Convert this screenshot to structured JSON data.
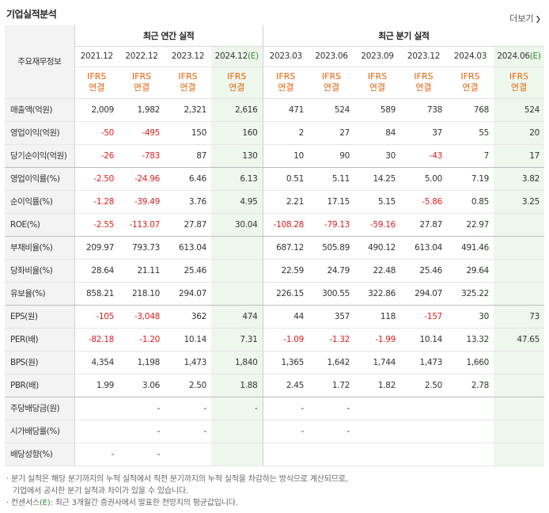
{
  "section_title": "기업실적분석",
  "more_label": "더보기",
  "headers": {
    "row_label_header": "주요재무정보",
    "annual_group": "최근 연간 실적",
    "quarterly_group": "최근 분기 실적",
    "annual_periods": [
      "2021.12",
      "2022.12",
      "2023.12",
      "2024.12"
    ],
    "annual_est_suffix": "(E)",
    "quarter_periods": [
      "2023.03",
      "2023.06",
      "2023.09",
      "2023.12",
      "2024.03",
      "2024.06"
    ],
    "quarter_est_suffix": "(E)",
    "ifrs_line1": "IFRS",
    "ifrs_line2": "연결"
  },
  "rows": [
    {
      "label": "매출액(억원)",
      "values": [
        "2,009",
        "1,982",
        "2,321",
        "2,616",
        "471",
        "524",
        "589",
        "738",
        "768",
        "524"
      ]
    },
    {
      "label": "영업이익(억원)",
      "values": [
        "-50",
        "-495",
        "150",
        "160",
        "2",
        "27",
        "84",
        "37",
        "55",
        "20"
      ]
    },
    {
      "label": "당기순이익(억원)",
      "values": [
        "-26",
        "-783",
        "87",
        "130",
        "10",
        "90",
        "30",
        "-43",
        "7",
        "17"
      ]
    },
    {
      "label": "영업이익률(%)",
      "values": [
        "-2.50",
        "-24.96",
        "6.46",
        "6.13",
        "0.51",
        "5.11",
        "14.25",
        "5.00",
        "7.19",
        "3.82"
      ]
    },
    {
      "label": "순이익률(%)",
      "values": [
        "-1.28",
        "-39.49",
        "3.76",
        "4.95",
        "2.21",
        "17.15",
        "5.15",
        "-5.86",
        "0.85",
        "3.25"
      ]
    },
    {
      "label": "ROE(%)",
      "values": [
        "-2.55",
        "-113.07",
        "27.87",
        "30.04",
        "-108.28",
        "-79.13",
        "-59.16",
        "27.87",
        "22.97",
        ""
      ]
    },
    {
      "label": "부채비율(%)",
      "values": [
        "209.97",
        "793.73",
        "613.04",
        "",
        "687.12",
        "505.89",
        "490.12",
        "613.04",
        "491.46",
        ""
      ]
    },
    {
      "label": "당좌비율(%)",
      "values": [
        "28.64",
        "21.11",
        "25.46",
        "",
        "22.59",
        "24.79",
        "22.48",
        "25.46",
        "29.64",
        ""
      ]
    },
    {
      "label": "유보율(%)",
      "values": [
        "858.21",
        "218.10",
        "294.07",
        "",
        "226.15",
        "300.55",
        "322.86",
        "294.07",
        "325.22",
        ""
      ]
    },
    {
      "label": "EPS(원)",
      "values": [
        "-105",
        "-3,048",
        "362",
        "474",
        "44",
        "357",
        "118",
        "-157",
        "30",
        "73"
      ]
    },
    {
      "label": "PER(배)",
      "values": [
        "-82.18",
        "-1.20",
        "10.14",
        "7.31",
        "-1.09",
        "-1.32",
        "-1.99",
        "10.14",
        "13.32",
        "47.65"
      ]
    },
    {
      "label": "BPS(원)",
      "values": [
        "4,354",
        "1,198",
        "1,473",
        "1,840",
        "1,365",
        "1,642",
        "1,744",
        "1,473",
        "1,660",
        ""
      ]
    },
    {
      "label": "PBR(배)",
      "values": [
        "1.99",
        "3.06",
        "2.50",
        "1.88",
        "2.45",
        "1.72",
        "1.82",
        "2.50",
        "2.78",
        ""
      ]
    },
    {
      "label": "주당배당금(원)",
      "values": [
        "",
        "-",
        "-",
        "-",
        "-",
        "-",
        "",
        "",
        "",
        ""
      ]
    },
    {
      "label": "시가배당률(%)",
      "values": [
        "",
        "-",
        "-",
        "",
        "-",
        "-",
        "",
        "",
        "",
        ""
      ]
    },
    {
      "label": "배당성향(%)",
      "values": [
        "-",
        "-",
        "",
        "",
        "",
        "",
        "",
        "",
        "",
        ""
      ]
    }
  ],
  "notes": {
    "note1_line1": "· 분기 실적은 해당 분기까지의 누적 실적에서 직전 분기까지의 누적 실적을 차감하는 방식으로 계산되므로,",
    "note1_line2": "기업에서 공시한 분기 실적과 차이가 있을 수 있습니다.",
    "note2_prefix": "· 컨센서스",
    "note2_mark": "(E)",
    "note2_rest": ": 최근 3개월간 증권사에서 발표한 전망치의 평균값입니다."
  },
  "colors": {
    "negative": "#e02020",
    "ifrs": "#e8620c",
    "estimate_bg": "#eef7ec",
    "estimate_mark": "#2f8a33"
  }
}
